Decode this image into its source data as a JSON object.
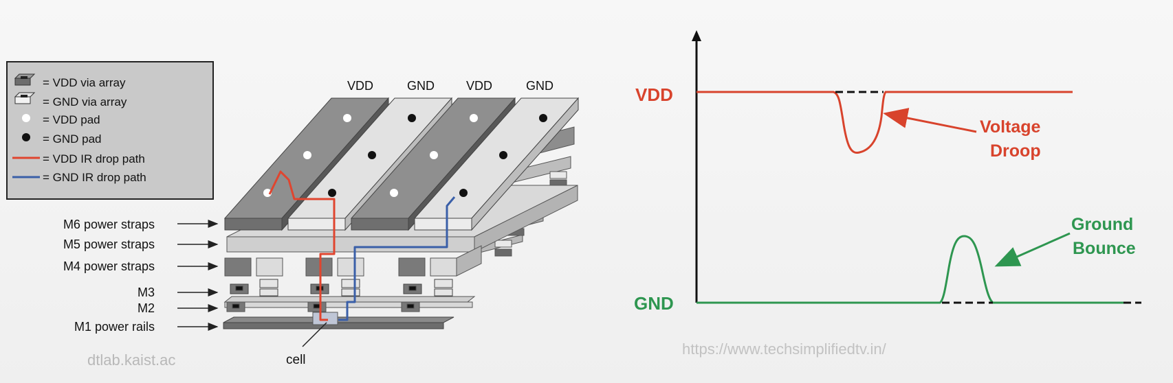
{
  "legend": {
    "items": [
      {
        "marker": "vdd-via",
        "text": "= VDD via array"
      },
      {
        "marker": "gnd-via",
        "text": "= GND via array"
      },
      {
        "marker": "vdd-pad",
        "text": "= VDD pad"
      },
      {
        "marker": "gnd-pad",
        "text": "= GND pad"
      },
      {
        "marker": "vdd-path",
        "text": "= VDD IR drop path"
      },
      {
        "marker": "gnd-path",
        "text": "= GND IR drop path"
      }
    ]
  },
  "rail_labels": [
    "VDD",
    "GND",
    "VDD",
    "GND"
  ],
  "layer_labels": [
    "M6 power straps",
    "M5 power straps",
    "M4 power straps",
    "M3",
    "M2",
    "M1 power rails"
  ],
  "cell_label": "cell",
  "credit_left": "dtlab.kaist.ac",
  "credit_right": "https://www.techsimplifiedtv.in/",
  "waveform": {
    "vdd_label": "VDD",
    "gnd_label": "GND",
    "droop_label_1": "Voltage",
    "droop_label_2": "Droop",
    "bounce_label_1": "Ground",
    "bounce_label_2": "Bounce"
  },
  "colors": {
    "vdd": "#d8432c",
    "gnd": "#2e9650",
    "vdd_path": "#e0452f",
    "gnd_path": "#3a5fa8"
  }
}
